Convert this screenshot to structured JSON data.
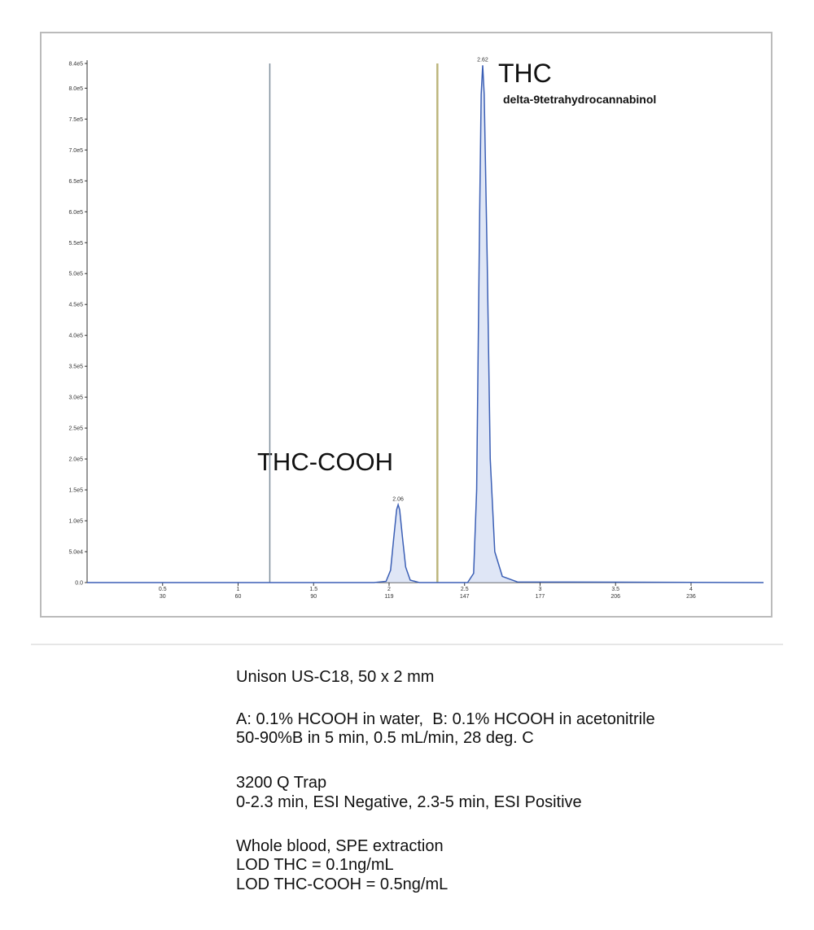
{
  "chart_data": {
    "type": "line",
    "annotations": [
      "THC-COOH",
      "THC",
      "delta-9tetrahydrocannabinol"
    ],
    "x": [
      0,
      1.9,
      1.98,
      2.01,
      2.03,
      2.05,
      2.06,
      2.07,
      2.09,
      2.11,
      2.14,
      2.2,
      2.52,
      2.56,
      2.58,
      2.6,
      2.61,
      2.62,
      2.63,
      2.65,
      2.67,
      2.7,
      2.75,
      2.85,
      4.48
    ],
    "series": [
      {
        "color": "#3b5fb5",
        "values": [
          0,
          0,
          2000,
          20000,
          70000,
          118000,
          126000,
          118000,
          70000,
          25000,
          4000,
          0,
          0,
          15000,
          150000,
          600000,
          790000,
          837000,
          790000,
          520000,
          200000,
          50000,
          10000,
          1000,
          0
        ]
      }
    ],
    "peaks": [
      2.06,
      2.62
    ],
    "vlines": [
      {
        "x": 1.21,
        "color": "#7d8c99"
      },
      {
        "x": 2.32,
        "color": "#bdb57c"
      }
    ],
    "xlim": [
      0,
      4.48
    ],
    "xticks": [
      0.5,
      1.0,
      1.5,
      2.0,
      2.5,
      3.0,
      3.5,
      4.0
    ],
    "scan_labels": [
      30,
      60,
      90,
      119,
      147,
      177,
      206,
      236
    ],
    "ylim": [
      0,
      840000
    ],
    "yticks": [
      {
        "value": 0,
        "label": "0.0"
      },
      {
        "value": 50000,
        "label": "5.0e4"
      },
      {
        "value": 100000,
        "label": "1.0e5"
      },
      {
        "value": 150000,
        "label": "1.5e5"
      },
      {
        "value": 200000,
        "label": "2.0e5"
      },
      {
        "value": 250000,
        "label": "2.5e5"
      },
      {
        "value": 300000,
        "label": "3.0e5"
      },
      {
        "value": 350000,
        "label": "3.5e5"
      },
      {
        "value": 400000,
        "label": "4.0e5"
      },
      {
        "value": 450000,
        "label": "4.5e5"
      },
      {
        "value": 500000,
        "label": "5.0e5"
      },
      {
        "value": 550000,
        "label": "5.5e5"
      },
      {
        "value": 600000,
        "label": "6.0e5"
      },
      {
        "value": 650000,
        "label": "6.5e5"
      },
      {
        "value": 700000,
        "label": "7.0e5"
      },
      {
        "value": 750000,
        "label": "7.5e5"
      },
      {
        "value": 800000,
        "label": "8.0e5"
      },
      {
        "value": 840000,
        "label": "8.4e5"
      }
    ]
  },
  "notes": [
    "Unison US-C18, 50 x 2 mm",
    "A: 0.1% HCOOH in water,  B: 0.1% HCOOH in acetonitrile",
    "50-90%B in 5 min, 0.5 mL/min, 28 deg. C",
    "3200 Q Trap",
    "0-2.3 min, ESI Negative, 2.3-5 min, ESI Positive",
    "Whole blood, SPE extraction",
    "LOD THC = 0.1ng/mL",
    "LOD THC-COOH = 0.5ng/mL"
  ]
}
